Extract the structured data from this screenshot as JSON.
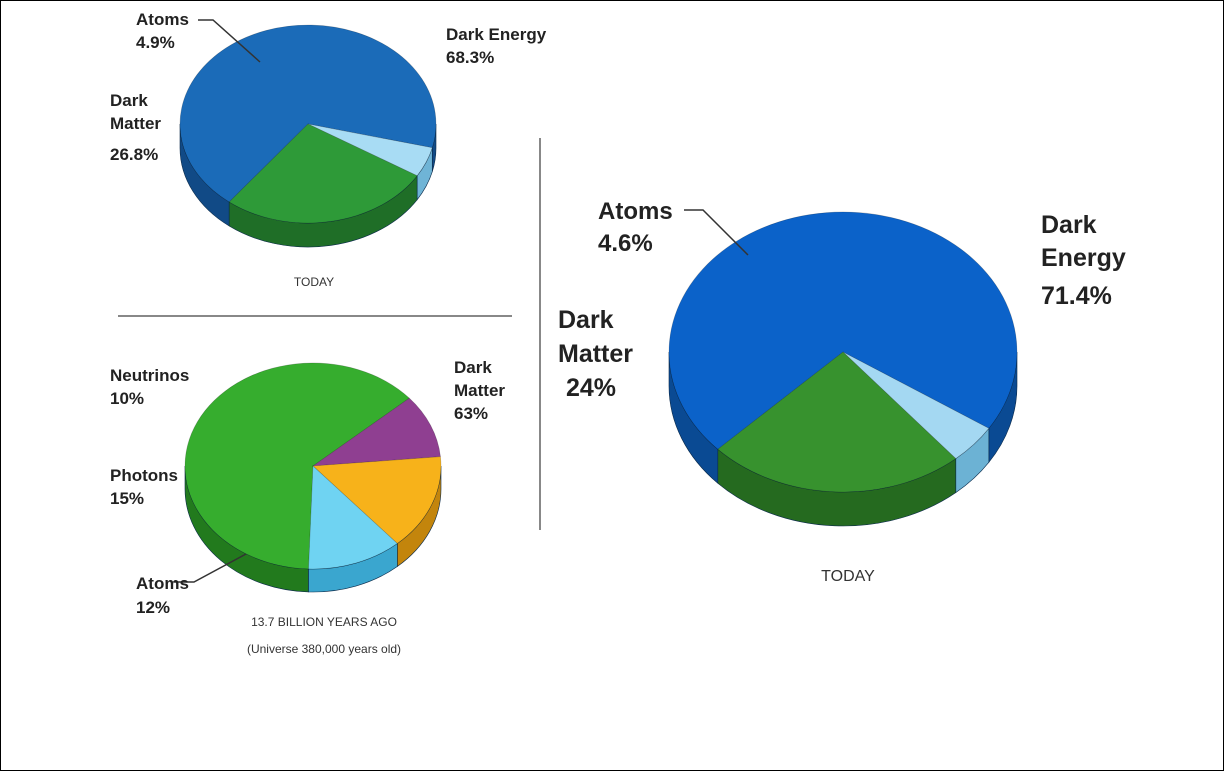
{
  "chart_data": [
    {
      "type": "pie",
      "caption": "TODAY",
      "slices": [
        {
          "label": "Dark Energy",
          "value": 68.3,
          "value_text": "68.3%",
          "color": "#1b6bb8",
          "side_color": "#114a86"
        },
        {
          "label": "Dark Matter",
          "value": 26.8,
          "value_text": "26.8%",
          "color": "#2e9a38",
          "side_color": "#1f6e27"
        },
        {
          "label": "Atoms",
          "value": 4.9,
          "value_text": "4.9%",
          "color": "#a8dcf4",
          "side_color": "#6fb4d6"
        }
      ]
    },
    {
      "type": "pie",
      "caption": "13.7 BILLION YEARS AGO",
      "caption_sub": "(Universe 380,000 years old)",
      "slices": [
        {
          "label": "Dark Matter",
          "value": 63,
          "value_text": "63%",
          "color": "#36ad2e",
          "side_color": "#227a1d"
        },
        {
          "label": "Atoms",
          "value": 12,
          "value_text": "12%",
          "color": "#6fd3f2",
          "side_color": "#3aa6cf"
        },
        {
          "label": "Photons",
          "value": 15,
          "value_text": "15%",
          "color": "#f7b21a",
          "side_color": "#c3850c"
        },
        {
          "label": "Neutrinos",
          "value": 10,
          "value_text": "10%",
          "color": "#8f3f91",
          "side_color": "#632a65"
        }
      ]
    },
    {
      "type": "pie",
      "caption": "TODAY",
      "slices": [
        {
          "label": "Dark Energy",
          "value": 71.4,
          "value_text": "71.4%",
          "color": "#0b62c9",
          "side_color": "#0a4a93"
        },
        {
          "label": "Dark Matter",
          "value": 24,
          "value_text": "24%",
          "color": "#37922e",
          "side_color": "#256a1f"
        },
        {
          "label": "Atoms",
          "value": 4.6,
          "value_text": "4.6%",
          "color": "#a4d8f2",
          "side_color": "#6cb2d4"
        }
      ]
    }
  ]
}
